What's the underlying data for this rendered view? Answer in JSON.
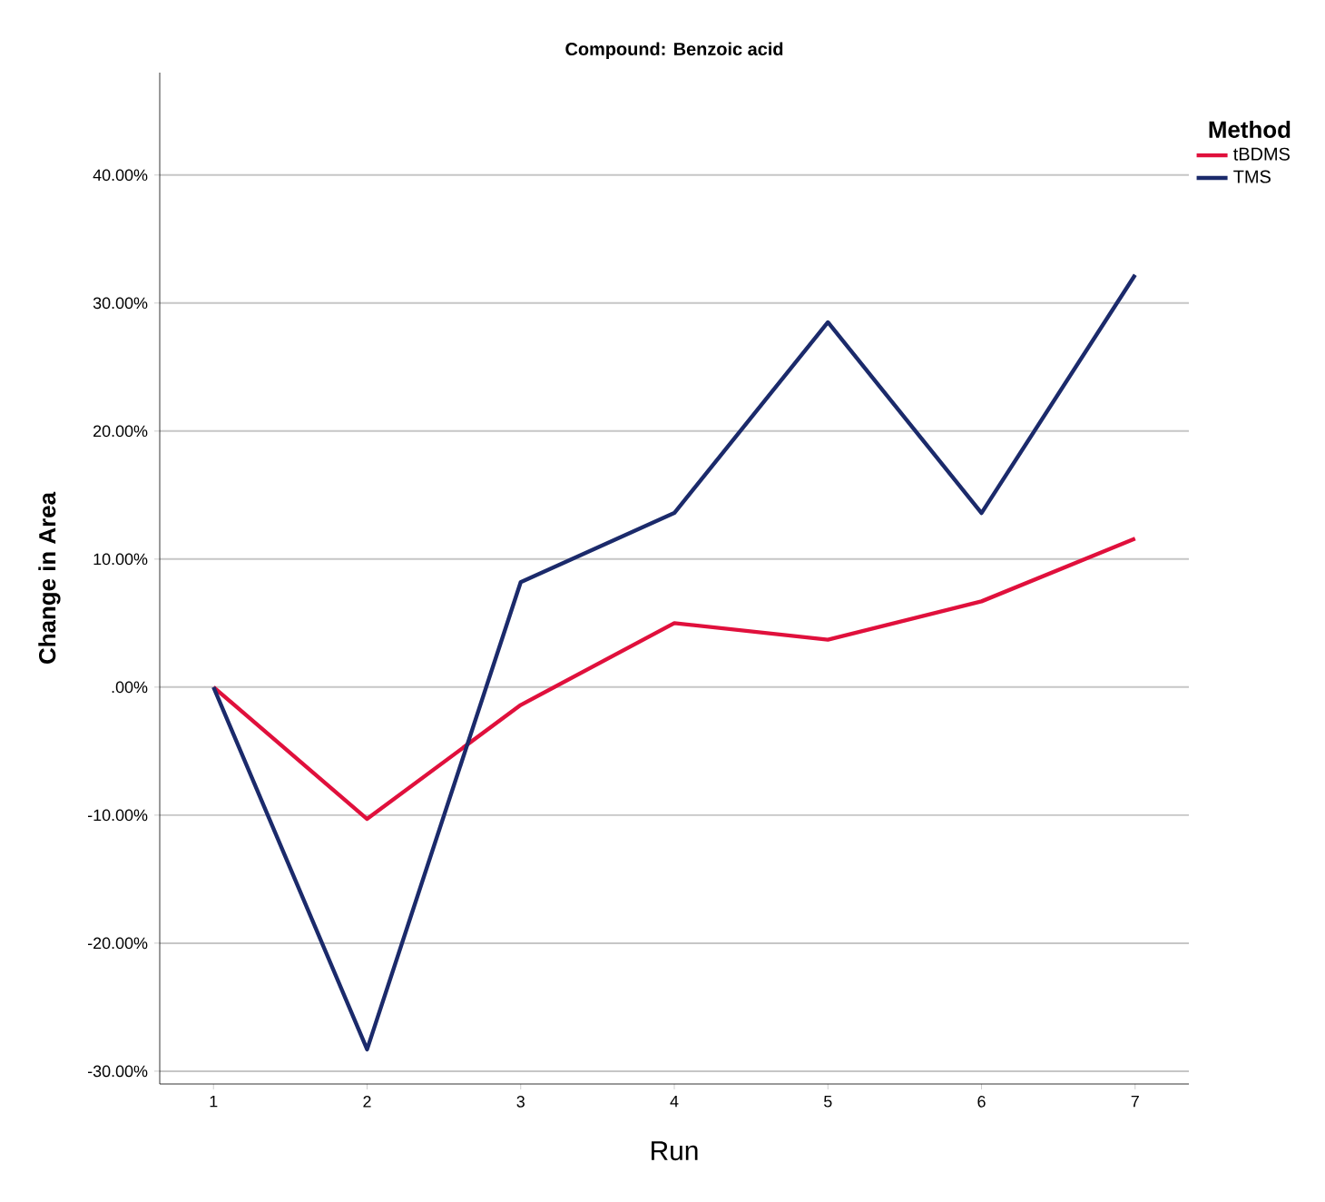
{
  "chart_data": {
    "type": "line",
    "title": "Compound: Benzoic acid",
    "xlabel": "Run",
    "ylabel": "Change in Area",
    "legend_title": "Method",
    "categories": [
      "1",
      "2",
      "3",
      "4",
      "5",
      "6",
      "7"
    ],
    "series": [
      {
        "name": "tBDMS",
        "color": "#e0103c",
        "values": [
          0,
          -10.3,
          -1.4,
          5.0,
          3.7,
          6.7,
          11.6
        ]
      },
      {
        "name": "TMS",
        "color": "#1b2a6b",
        "values": [
          0,
          -28.3,
          8.2,
          13.6,
          28.5,
          13.6,
          32.2
        ]
      }
    ],
    "ylim": [
      -31,
      48
    ],
    "yticks": [
      {
        "value": -30,
        "label": "-30.00%"
      },
      {
        "value": -20,
        "label": "-20.00%"
      },
      {
        "value": -10,
        "label": "-10.00%"
      },
      {
        "value": 0,
        "label": ".00%"
      },
      {
        "value": 10,
        "label": "10.00%"
      },
      {
        "value": 20,
        "label": "20.00%"
      },
      {
        "value": 30,
        "label": "30.00%"
      },
      {
        "value": 40,
        "label": "40.00%"
      }
    ],
    "grid": "y",
    "legend": "top right",
    "marker": "none",
    "line_style": "solid"
  }
}
